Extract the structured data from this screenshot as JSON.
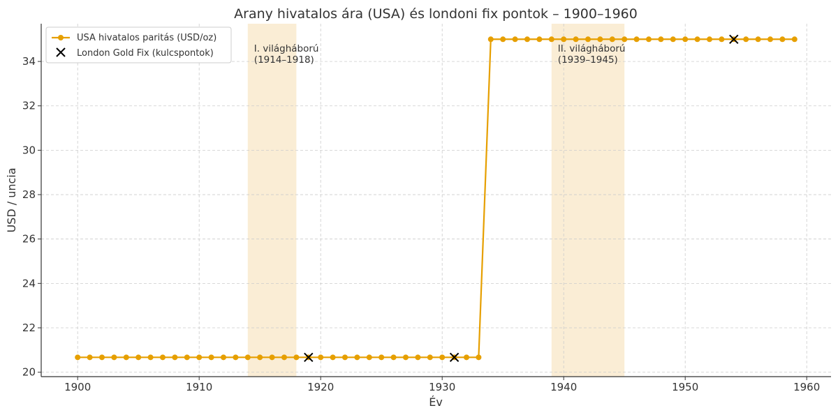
{
  "chart_data": {
    "type": "line",
    "title": "Arany hivatalos ára (USA) és londoni fix pontok – 1900–1960",
    "xlabel": "Év",
    "ylabel": "USD / uncia",
    "xlim": [
      1897,
      1962
    ],
    "ylim": [
      19.8,
      35.7
    ],
    "xticks": [
      1900,
      1910,
      1920,
      1930,
      1940,
      1950,
      1960
    ],
    "yticks": [
      20,
      22,
      24,
      26,
      28,
      30,
      32,
      34
    ],
    "grid": true,
    "legend_position": "top-left",
    "series": [
      {
        "name": "USA hivatalos paritás (USD/oz)",
        "kind": "line-with-markers",
        "color": "#E69F00",
        "x": [
          1900,
          1901,
          1902,
          1903,
          1904,
          1905,
          1906,
          1907,
          1908,
          1909,
          1910,
          1911,
          1912,
          1913,
          1914,
          1915,
          1916,
          1917,
          1918,
          1919,
          1920,
          1921,
          1922,
          1923,
          1924,
          1925,
          1926,
          1927,
          1928,
          1929,
          1930,
          1931,
          1932,
          1933,
          1934,
          1935,
          1936,
          1937,
          1938,
          1939,
          1940,
          1941,
          1942,
          1943,
          1944,
          1945,
          1946,
          1947,
          1948,
          1949,
          1950,
          1951,
          1952,
          1953,
          1954,
          1955,
          1956,
          1957,
          1958,
          1959
        ],
        "y": [
          20.67,
          20.67,
          20.67,
          20.67,
          20.67,
          20.67,
          20.67,
          20.67,
          20.67,
          20.67,
          20.67,
          20.67,
          20.67,
          20.67,
          20.67,
          20.67,
          20.67,
          20.67,
          20.67,
          20.67,
          20.67,
          20.67,
          20.67,
          20.67,
          20.67,
          20.67,
          20.67,
          20.67,
          20.67,
          20.67,
          20.67,
          20.67,
          20.67,
          20.67,
          35,
          35,
          35,
          35,
          35,
          35,
          35,
          35,
          35,
          35,
          35,
          35,
          35,
          35,
          35,
          35,
          35,
          35,
          35,
          35,
          35,
          35,
          35,
          35,
          35,
          35
        ]
      },
      {
        "name": "London Gold Fix (kulcspontok)",
        "kind": "scatter-x",
        "color": "#000000",
        "x": [
          1919,
          1931,
          1954
        ],
        "y": [
          20.67,
          20.67,
          35
        ]
      }
    ],
    "shaded_regions": [
      {
        "x_start": 1914,
        "x_end": 1918,
        "label_line1": "I. világháború",
        "label_line2": "(1914–1918)",
        "color": "#F5DEB3"
      },
      {
        "x_start": 1939,
        "x_end": 1945,
        "label_line1": "II. világháború",
        "label_line2": "(1939–1945)",
        "color": "#F5DEB3"
      }
    ]
  }
}
